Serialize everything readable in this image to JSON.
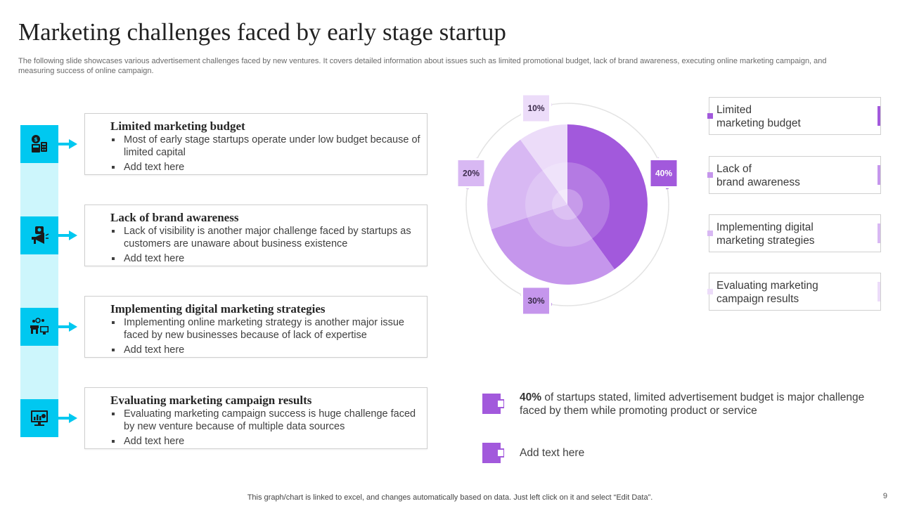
{
  "header": {
    "title": "Marketing challenges faced by early stage startup",
    "subtitle": "The following slide showcases various advertisement challenges faced by new ventures. It covers detailed information about issues such as limited promotional budget, lack of brand awareness, executing online marketing campaign, and measuring success of online campaign."
  },
  "challenges": [
    {
      "icon": "budget-calculator-icon",
      "title": "Limited marketing budget",
      "bullets": [
        "Most of early stage startups operate under low budget because of limited capital",
        "Add text here"
      ]
    },
    {
      "icon": "megaphone-icon",
      "title": "Lack of brand awareness",
      "bullets": [
        "Lack of visibility is another major challenge faced by startups as customers are unaware about business existence",
        "Add text here"
      ]
    },
    {
      "icon": "digital-store-icon",
      "title": "Implementing digital marketing strategies",
      "bullets": [
        "Implementing online marketing strategy is another major issue faced by new businesses because of lack of expertise",
        "Add text here"
      ]
    },
    {
      "icon": "analytics-monitor-icon",
      "title": "Evaluating marketing campaign results",
      "bullets": [
        "Evaluating marketing campaign success is huge challenge faced by new venture because of multiple data sources",
        "Add text here"
      ]
    }
  ],
  "chart_data": {
    "type": "pie",
    "title": "",
    "categories": [
      "Limited marketing budget",
      "Lack of brand awareness",
      "Implementing digital marketing strategies",
      "Evaluating marketing campaign results"
    ],
    "values": [
      40,
      30,
      20,
      10
    ],
    "labels": [
      "40%",
      "30%",
      "20%",
      "10%"
    ],
    "colors": [
      "#a259dc",
      "#c596ec",
      "#d8b8f3",
      "#ecdcf9"
    ]
  },
  "legend": [
    {
      "line1": "Limited",
      "line2": "marketing budget",
      "color": "#a259dc"
    },
    {
      "line1": "Lack of",
      "line2": "brand awareness",
      "color": "#c596ec"
    },
    {
      "line1": "Implementing  digital",
      "line2": "marketing strategies",
      "color": "#d8b8f3"
    },
    {
      "line1": "Evaluating marketing",
      "line2": "campaign results",
      "color": "#ecdcf9"
    }
  ],
  "notes": [
    {
      "bold": "40%",
      "text": " of startups stated, limited advertisement budget is major challenge faced by them while promoting product or service"
    },
    {
      "bold": "",
      "text": "Add text here"
    }
  ],
  "footer": {
    "text": "This graph/chart is linked to excel,  and changes automatically based on data. Just left click on it and select “Edit Data”.",
    "page_number": "9"
  },
  "theme": {
    "accent_cyan": "#00c8f0",
    "rail": "#cdf6fc",
    "accent_purple": "#a259dc"
  }
}
